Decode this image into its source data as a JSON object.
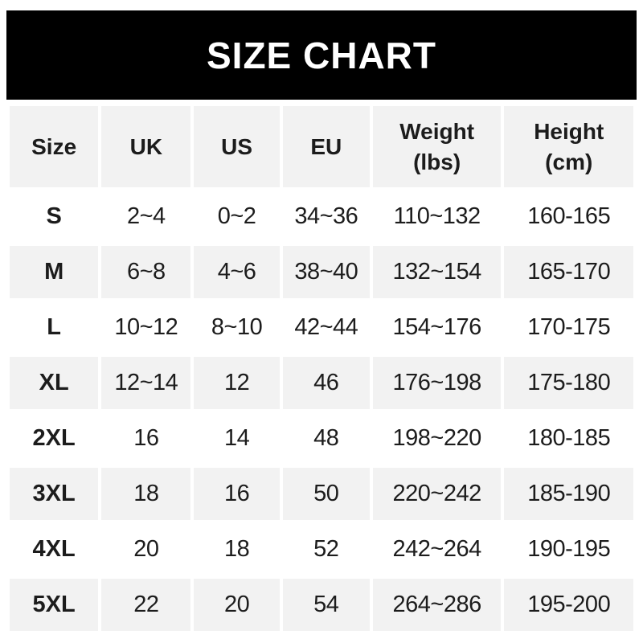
{
  "banner": {
    "title": "SIZE CHART"
  },
  "colors": {
    "banner_bg": "#000000",
    "banner_text": "#ffffff",
    "row_alt_bg": "#f2f2f2",
    "row_bg": "#ffffff",
    "text": "#1c1c1c"
  },
  "chart_data": {
    "type": "table",
    "title": "SIZE CHART",
    "columns": [
      "Size",
      "UK",
      "US",
      "EU",
      "Weight\n(lbs)",
      "Height\n(cm)"
    ],
    "column_slugs": [
      "size",
      "uk",
      "us",
      "eu",
      "weight",
      "height"
    ],
    "rows": [
      [
        "S",
        "2~4",
        "0~2",
        "34~36",
        "110~132",
        "160-165"
      ],
      [
        "M",
        "6~8",
        "4~6",
        "38~40",
        "132~154",
        "165-170"
      ],
      [
        "L",
        "10~12",
        "8~10",
        "42~44",
        "154~176",
        "170-175"
      ],
      [
        "XL",
        "12~14",
        "12",
        "46",
        "176~198",
        "175-180"
      ],
      [
        "2XL",
        "16",
        "14",
        "48",
        "198~220",
        "180-185"
      ],
      [
        "3XL",
        "18",
        "16",
        "50",
        "220~242",
        "185-190"
      ],
      [
        "4XL",
        "20",
        "18",
        "52",
        "242~264",
        "190-195"
      ],
      [
        "5XL",
        "22",
        "20",
        "54",
        "264~286",
        "195-200"
      ]
    ]
  }
}
